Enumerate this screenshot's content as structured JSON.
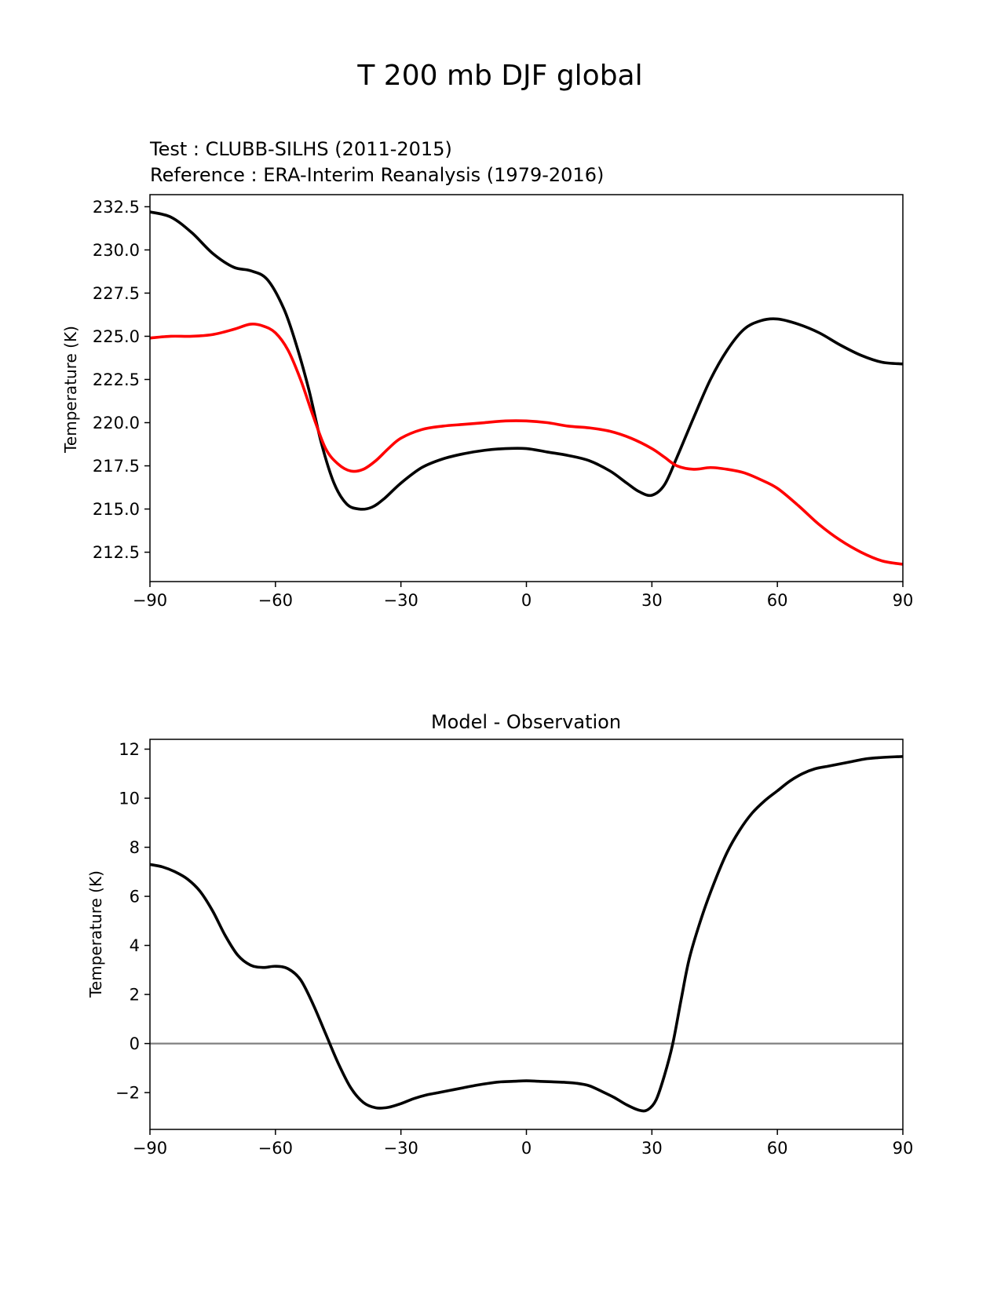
{
  "figure": {
    "suptitle": "T 200 mb DJF global"
  },
  "colors": {
    "test": "#000000",
    "reference": "#ff0000",
    "zero_line": "#808080"
  },
  "chart_data": [
    {
      "type": "line",
      "test_label": "Test : CLUBB-SILHS (2011-2015)",
      "reference_label": "Reference : ERA-Interim Reanalysis (1979-2016)",
      "xlabel": "",
      "ylabel": "Temperature (K)",
      "xlim": [
        -90,
        90
      ],
      "ylim": [
        210.8,
        233.2
      ],
      "xticks": [
        -90,
        -60,
        -30,
        0,
        30,
        60,
        90
      ],
      "xtick_labels": [
        "−90",
        "−60",
        "−30",
        "0",
        "30",
        "60",
        "90"
      ],
      "yticks": [
        212.5,
        215.0,
        217.5,
        220.0,
        222.5,
        225.0,
        227.5,
        230.0,
        232.5
      ],
      "ytick_labels": [
        "212.5",
        "215.0",
        "217.5",
        "220.0",
        "222.5",
        "225.0",
        "227.5",
        "230.0",
        "232.5"
      ],
      "series": [
        {
          "name": "Test",
          "color": "#000000",
          "x": [
            -90,
            -85,
            -80,
            -75,
            -70,
            -66,
            -62,
            -58,
            -55,
            -52,
            -49,
            -46,
            -43,
            -40,
            -37,
            -34,
            -30,
            -25,
            -20,
            -15,
            -10,
            -5,
            0,
            5,
            10,
            15,
            20,
            24,
            27,
            30,
            33,
            36,
            40,
            44,
            48,
            52,
            56,
            60,
            65,
            70,
            75,
            80,
            85,
            90
          ],
          "y": [
            232.2,
            231.9,
            231.0,
            229.8,
            229.0,
            228.8,
            228.3,
            226.6,
            224.5,
            221.9,
            218.8,
            216.5,
            215.3,
            215.0,
            215.1,
            215.6,
            216.5,
            217.4,
            217.9,
            218.2,
            218.4,
            218.5,
            218.5,
            218.3,
            218.1,
            217.8,
            217.2,
            216.5,
            216.0,
            215.8,
            216.4,
            218.0,
            220.3,
            222.5,
            224.2,
            225.4,
            225.9,
            226.0,
            225.7,
            225.2,
            224.5,
            223.9,
            223.5,
            223.4
          ]
        },
        {
          "name": "Reference",
          "color": "#ff0000",
          "x": [
            -90,
            -85,
            -80,
            -75,
            -70,
            -66,
            -63,
            -60,
            -57,
            -54,
            -51,
            -48,
            -45,
            -42,
            -39,
            -36,
            -33,
            -30,
            -25,
            -20,
            -15,
            -10,
            -5,
            0,
            5,
            10,
            15,
            20,
            25,
            30,
            33,
            36,
            40,
            44,
            48,
            52,
            56,
            60,
            65,
            70,
            75,
            80,
            85,
            90
          ],
          "y": [
            224.9,
            225.0,
            225.0,
            225.1,
            225.4,
            225.7,
            225.6,
            225.2,
            224.2,
            222.5,
            220.4,
            218.5,
            217.6,
            217.2,
            217.3,
            217.8,
            218.5,
            219.1,
            219.6,
            219.8,
            219.9,
            220.0,
            220.1,
            220.1,
            220.0,
            219.8,
            219.7,
            219.5,
            219.1,
            218.5,
            218.0,
            217.5,
            217.3,
            217.4,
            217.3,
            217.1,
            216.7,
            216.2,
            215.2,
            214.1,
            213.2,
            212.5,
            212.0,
            211.8
          ]
        }
      ]
    },
    {
      "type": "line",
      "title": "Model - Observation",
      "xlabel": "",
      "ylabel": "Temperature (K)",
      "xlim": [
        -90,
        90
      ],
      "ylim": [
        -3.5,
        12.4
      ],
      "xticks": [
        -90,
        -60,
        -30,
        0,
        30,
        60,
        90
      ],
      "xtick_labels": [
        "−90",
        "−60",
        "−30",
        "0",
        "30",
        "60",
        "90"
      ],
      "yticks": [
        -2,
        0,
        2,
        4,
        6,
        8,
        10,
        12
      ],
      "ytick_labels": [
        "−2",
        "0",
        "2",
        "4",
        "6",
        "8",
        "10",
        "12"
      ],
      "zero_line": 0,
      "series": [
        {
          "name": "Model - Observation",
          "color": "#000000",
          "x": [
            -90,
            -87,
            -84,
            -81,
            -78,
            -75,
            -72,
            -69,
            -66,
            -63,
            -60,
            -57,
            -54,
            -51,
            -48,
            -45,
            -42,
            -39,
            -36,
            -33,
            -30,
            -27,
            -24,
            -21,
            -18,
            -15,
            -12,
            -9,
            -6,
            -3,
            0,
            3,
            6,
            9,
            12,
            15,
            18,
            21,
            24,
            27,
            29,
            31,
            33,
            35,
            37,
            39,
            42,
            45,
            48,
            51,
            54,
            57,
            60,
            63,
            66,
            69,
            72,
            75,
            78,
            81,
            84,
            87,
            90
          ],
          "y": [
            7.3,
            7.2,
            7.0,
            6.7,
            6.2,
            5.4,
            4.4,
            3.6,
            3.2,
            3.1,
            3.15,
            3.05,
            2.6,
            1.6,
            0.4,
            -0.8,
            -1.8,
            -2.4,
            -2.62,
            -2.6,
            -2.45,
            -2.25,
            -2.1,
            -2.0,
            -1.9,
            -1.8,
            -1.7,
            -1.62,
            -1.56,
            -1.54,
            -1.52,
            -1.54,
            -1.56,
            -1.58,
            -1.62,
            -1.72,
            -1.95,
            -2.2,
            -2.5,
            -2.72,
            -2.7,
            -2.3,
            -1.3,
            0.0,
            1.8,
            3.5,
            5.2,
            6.6,
            7.8,
            8.7,
            9.4,
            9.9,
            10.3,
            10.7,
            11.0,
            11.2,
            11.3,
            11.4,
            11.5,
            11.6,
            11.65,
            11.68,
            11.7
          ]
        }
      ]
    }
  ]
}
